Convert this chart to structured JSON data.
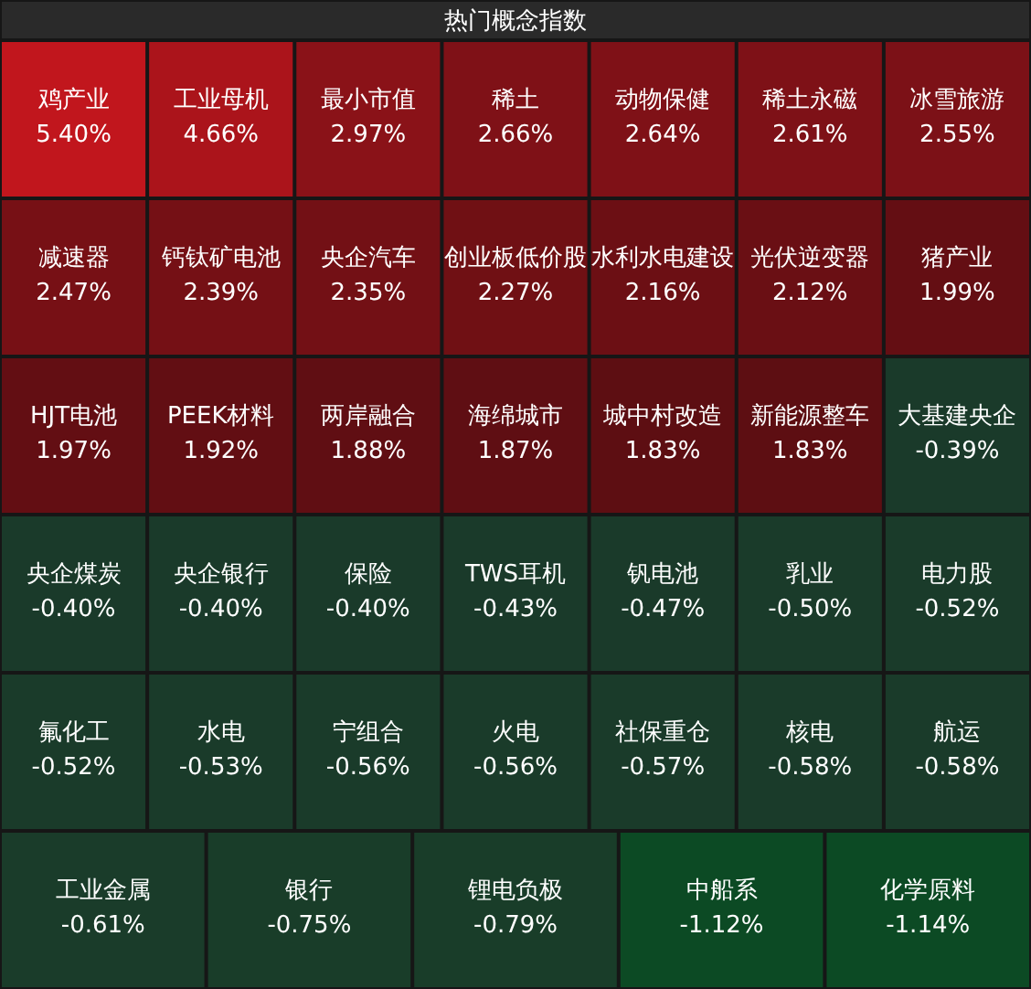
{
  "chart_data": {
    "type": "other",
    "title": "热门概念指数",
    "categories": [
      "鸡产业",
      "工业母机",
      "最小市值",
      "稀土",
      "动物保健",
      "稀土永磁",
      "冰雪旅游",
      "减速器",
      "钙钛矿电池",
      "央企汽车",
      "创业板低价股",
      "水利水电建设",
      "光伏逆变器",
      "猪产业",
      "HJT电池",
      "PEEK材料",
      "两岸融合",
      "海绵城市",
      "城中村改造",
      "新能源整车",
      "大基建央企",
      "央企煤炭",
      "央企银行",
      "保险",
      "TWS耳机",
      "钒电池",
      "乳业",
      "电力股",
      "氟化工",
      "水电",
      "宁组合",
      "火电",
      "社保重仓",
      "核电",
      "航运",
      "工业金属",
      "银行",
      "锂电负极",
      "中船系",
      "化学原料"
    ],
    "values": [
      5.4,
      4.66,
      2.97,
      2.66,
      2.64,
      2.61,
      2.55,
      2.47,
      2.39,
      2.35,
      2.27,
      2.16,
      2.12,
      1.99,
      1.97,
      1.92,
      1.88,
      1.87,
      1.83,
      1.83,
      -0.39,
      -0.4,
      -0.4,
      -0.4,
      -0.43,
      -0.47,
      -0.5,
      -0.52,
      -0.52,
      -0.53,
      -0.56,
      -0.56,
      -0.57,
      -0.58,
      -0.58,
      -0.61,
      -0.75,
      -0.79,
      -1.12,
      -1.14
    ],
    "value_labels": [
      "5.40%",
      "4.66%",
      "2.97%",
      "2.66%",
      "2.64%",
      "2.61%",
      "2.55%",
      "2.47%",
      "2.39%",
      "2.35%",
      "2.27%",
      "2.16%",
      "2.12%",
      "1.99%",
      "1.97%",
      "1.92%",
      "1.88%",
      "1.87%",
      "1.83%",
      "1.83%",
      "-0.39%",
      "-0.40%",
      "-0.40%",
      "-0.40%",
      "-0.43%",
      "-0.47%",
      "-0.50%",
      "-0.52%",
      "-0.52%",
      "-0.53%",
      "-0.56%",
      "-0.56%",
      "-0.57%",
      "-0.58%",
      "-0.58%",
      "-0.61%",
      "-0.75%",
      "-0.79%",
      "-1.12%",
      "-1.14%"
    ],
    "colors": [
      "#c1161d",
      "#a8141b",
      "#8a1319",
      "#7f1117",
      "#7e1117",
      "#7d1117",
      "#7b1117",
      "#761015",
      "#731015",
      "#711015",
      "#6e1014",
      "#6a0f14",
      "#690f14",
      "#630e13",
      "#620e13",
      "#610e13",
      "#5f0e13",
      "#5f0e13",
      "#5e0e12",
      "#5e0e12",
      "#1a3a2a",
      "#1a3a2a",
      "#1a3a2a",
      "#1a3a2a",
      "#1a3a2a",
      "#1a3a2a",
      "#1a3b2a",
      "#1a3b2a",
      "#1a3b2a",
      "#1a3b2a",
      "#1a3b2a",
      "#1a3b2a",
      "#1a3b2a",
      "#1a3b2a",
      "#1a3b2a",
      "#1a3c2a",
      "#193d29",
      "#193d29",
      "#0c4a24",
      "#0c4a24"
    ]
  }
}
